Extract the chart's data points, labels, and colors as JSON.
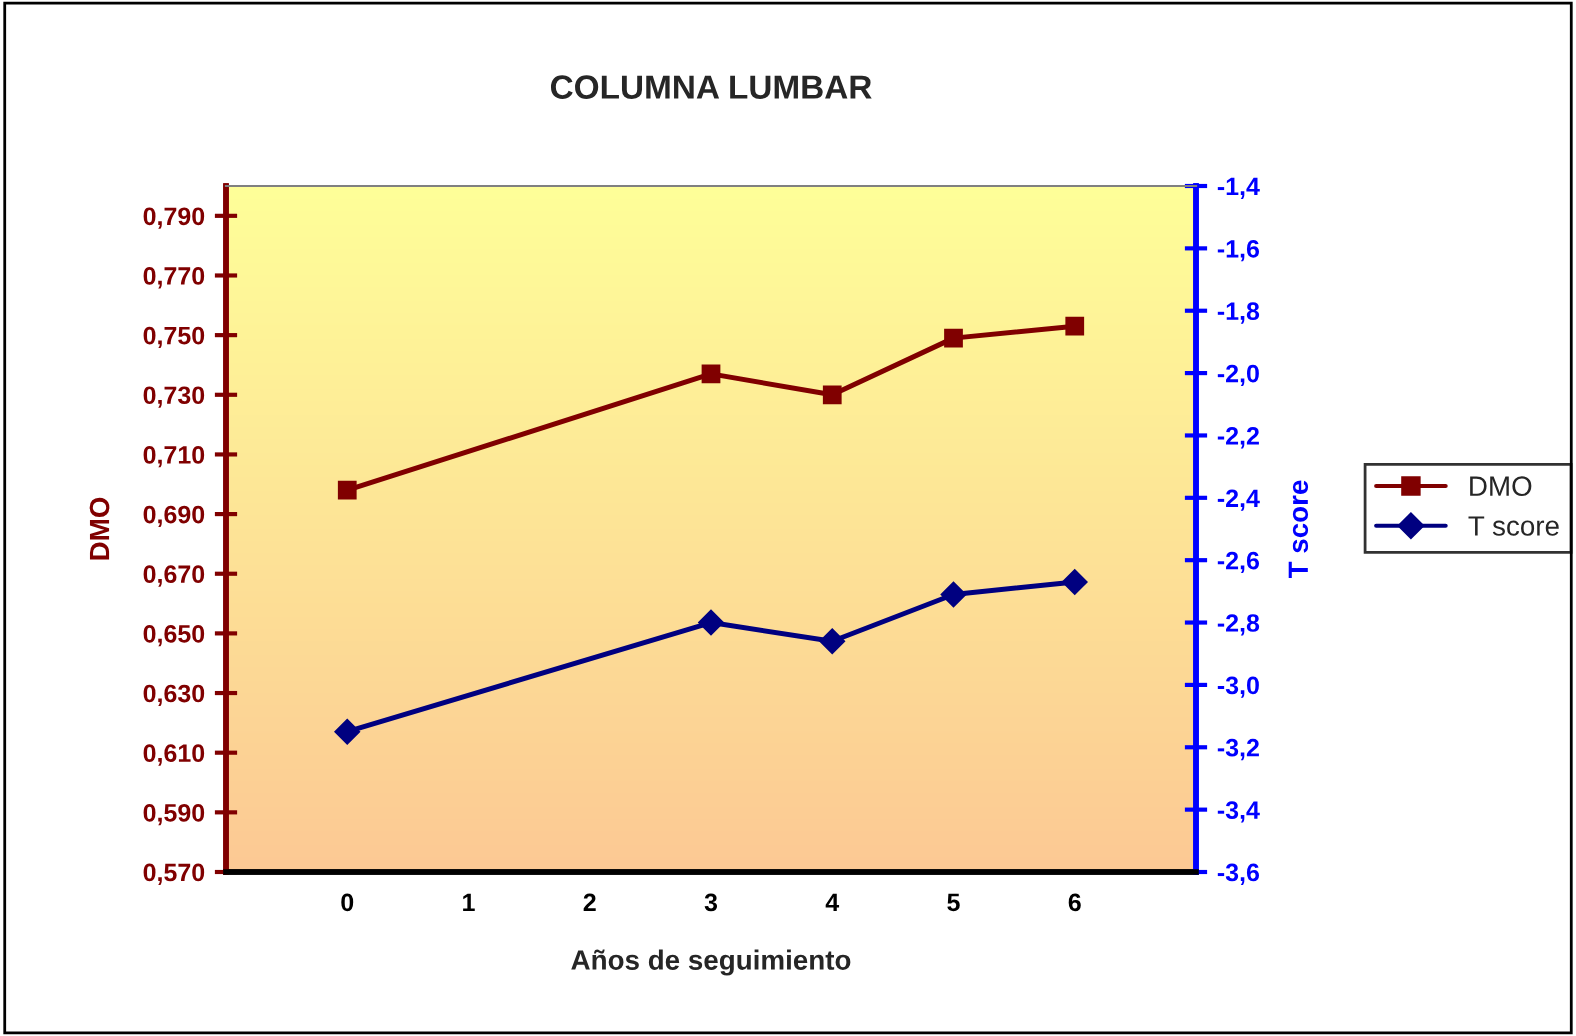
{
  "chart_data": {
    "type": "line",
    "title": "COLUMNA LUMBAR",
    "xlabel": "Años de seguimiento",
    "ylabel": "DMO",
    "y2label": "T score",
    "x": [
      0,
      3,
      4,
      5,
      6
    ],
    "series": [
      {
        "name": "DMO",
        "color": "#800000",
        "values": [
          0.698,
          0.737,
          0.73,
          0.749,
          0.753
        ],
        "marker": "square"
      },
      {
        "name": "T score",
        "color": "#000080",
        "values": [
          -3.15,
          -2.8,
          -2.86,
          -2.71,
          -2.67
        ],
        "marker": "diamond",
        "axis": "y2"
      }
    ],
    "xlim": [
      -1,
      7
    ],
    "xticks": [
      0,
      1,
      2,
      3,
      4,
      5,
      6
    ],
    "ylim": [
      0.57,
      0.8
    ],
    "yticks": [
      {
        "value": 0.57,
        "label": "0,570"
      },
      {
        "value": 0.59,
        "label": "0,590"
      },
      {
        "value": 0.61,
        "label": "0,610"
      },
      {
        "value": 0.63,
        "label": "0,630"
      },
      {
        "value": 0.65,
        "label": "0,650"
      },
      {
        "value": 0.67,
        "label": "0,670"
      },
      {
        "value": 0.69,
        "label": "0,690"
      },
      {
        "value": 0.71,
        "label": "0,710"
      },
      {
        "value": 0.73,
        "label": "0,730"
      },
      {
        "value": 0.75,
        "label": "0,750"
      },
      {
        "value": 0.77,
        "label": "0,770"
      },
      {
        "value": 0.79,
        "label": "0,790"
      }
    ],
    "y2lim": [
      -3.6,
      -1.4
    ],
    "y2ticks": [
      {
        "value": -3.6,
        "label": "-3,6"
      },
      {
        "value": -3.4,
        "label": "-3,4"
      },
      {
        "value": -3.2,
        "label": "-3,2"
      },
      {
        "value": -3.0,
        "label": "-3,0"
      },
      {
        "value": -2.8,
        "label": "-2,8"
      },
      {
        "value": -2.6,
        "label": "-2,6"
      },
      {
        "value": -2.4,
        "label": "-2,4"
      },
      {
        "value": -2.2,
        "label": "-2,2"
      },
      {
        "value": -2.0,
        "label": "-2,0"
      },
      {
        "value": -1.8,
        "label": "-1,8"
      },
      {
        "value": -1.6,
        "label": "-1,6"
      },
      {
        "value": -1.4,
        "label": "-1,4"
      }
    ],
    "grid": false,
    "legend": "right",
    "line_style": "solid"
  }
}
